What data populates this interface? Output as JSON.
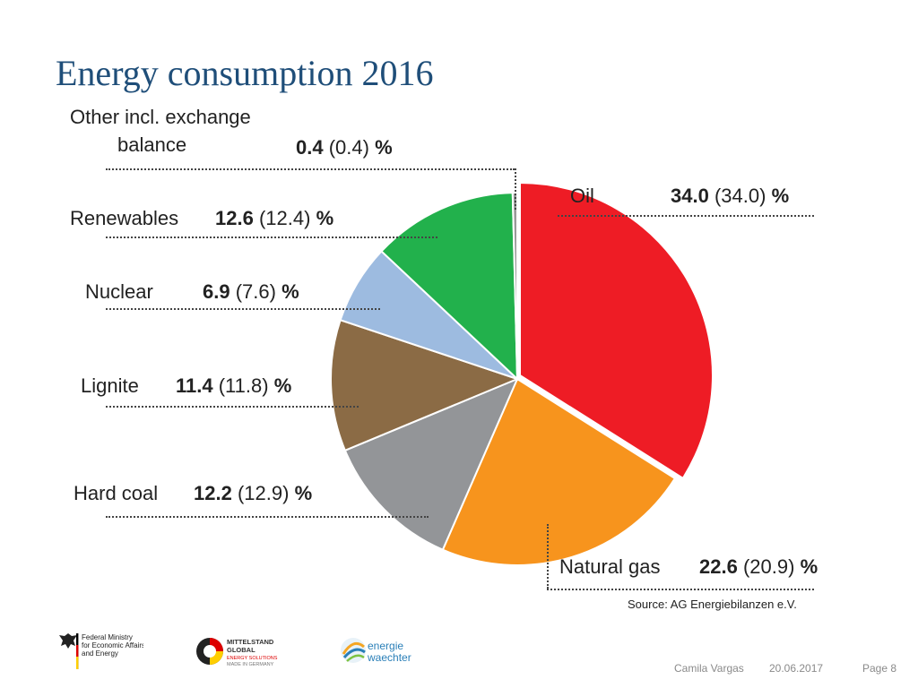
{
  "title": "Energy consumption 2016",
  "chart_data": {
    "type": "pie",
    "categories": [
      "Oil",
      "Natural gas",
      "Hard coal",
      "Lignite",
      "Nuclear",
      "Renewables",
      "Other incl. exchange balance"
    ],
    "values": [
      34.0,
      22.6,
      12.2,
      11.4,
      6.9,
      12.6,
      0.4
    ],
    "previous_values": [
      34.0,
      20.9,
      12.9,
      11.8,
      7.6,
      12.4,
      0.4
    ],
    "colors": [
      "#ee1c25",
      "#f7941d",
      "#939598",
      "#8b6b45",
      "#9dbbe0",
      "#22b14c",
      "#999999"
    ],
    "unit": "%"
  },
  "labels": {
    "oil": {
      "name": "Oil",
      "value": "34.0",
      "prev": "(34.0)",
      "unit": "%"
    },
    "gas": {
      "name": "Natural gas",
      "value": "22.6",
      "prev": "(20.9)",
      "unit": "%"
    },
    "hardcoal": {
      "name": "Hard coal",
      "value": "12.2",
      "prev": "(12.9)",
      "unit": "%"
    },
    "lignite": {
      "name": "Lignite",
      "value": "11.4",
      "prev": "(11.8)",
      "unit": "%"
    },
    "nuclear": {
      "name": "Nuclear",
      "value": "6.9",
      "prev": "(7.6)",
      "unit": "%"
    },
    "renewables": {
      "name": "Renewables",
      "value": "12.6",
      "prev": "(12.4)",
      "unit": "%"
    },
    "other": {
      "name_line1": "Other incl. exchange",
      "name_line2": "balance",
      "value": "0.4",
      "prev": "(0.4)",
      "unit": "%"
    }
  },
  "source": "Source: AG Energiebilanzen e.V.",
  "logos": {
    "ministry": [
      "Federal Ministry",
      "for Economic Affairs",
      "and Energy"
    ],
    "mittelstand": [
      "MITTELSTAND",
      "GLOBAL",
      "ENERGY SOLUTIONS",
      "MADE IN GERMANY"
    ],
    "energie": [
      "energie",
      "waechter"
    ]
  },
  "footer": {
    "author": "Camila Vargas",
    "date": "20.06.2017",
    "page": "Page 8"
  }
}
